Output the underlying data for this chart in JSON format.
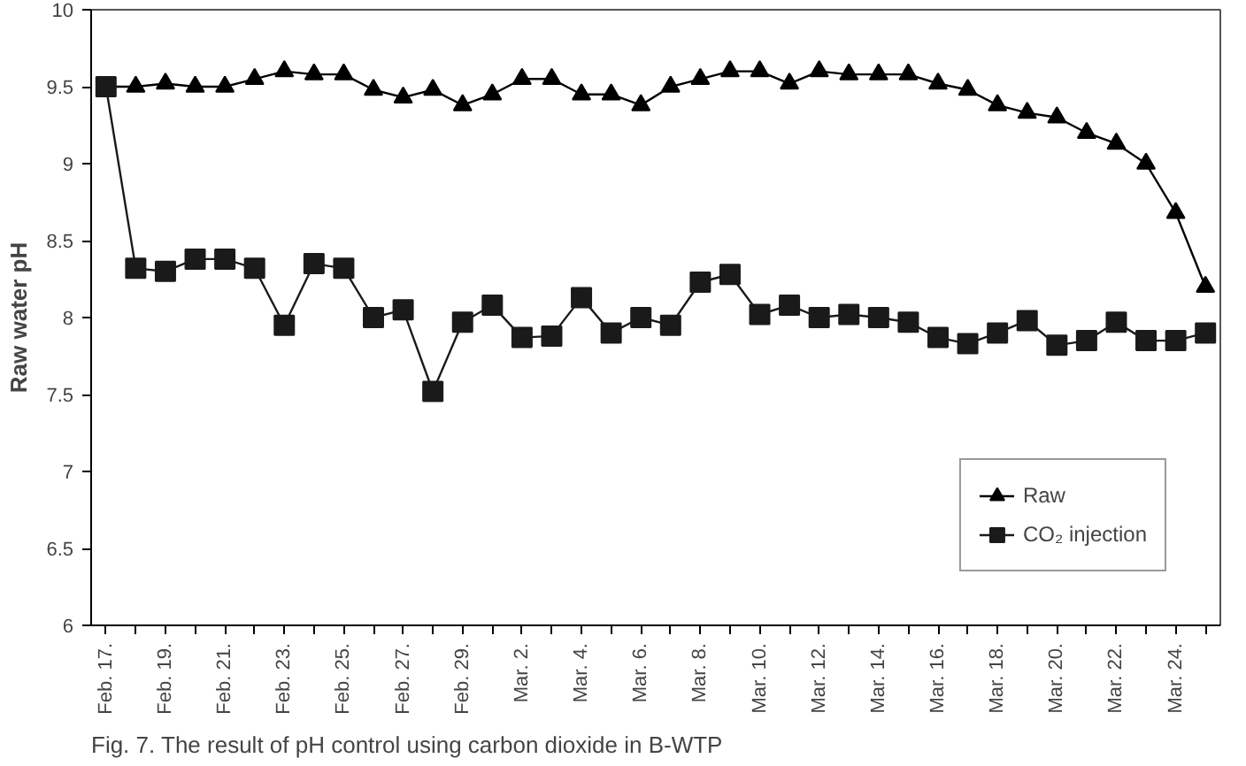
{
  "chart_data": {
    "type": "line",
    "ylabel": "Raw water pH",
    "categories": [
      "Feb. 17.",
      null,
      "Feb. 19.",
      null,
      "Feb. 21.",
      null,
      "Feb. 23.",
      null,
      "Feb. 25.",
      null,
      "Feb. 27.",
      null,
      "Feb. 29.",
      null,
      "Mar. 2.",
      null,
      "Mar. 4.",
      null,
      "Mar. 6.",
      null,
      "Mar. 8.",
      null,
      "Mar. 10.",
      null,
      "Mar. 12.",
      null,
      "Mar. 14.",
      null,
      "Mar. 16.",
      null,
      "Mar. 18.",
      null,
      "Mar. 20.",
      null,
      "Mar. 22.",
      null,
      "Mar. 24.",
      null
    ],
    "series": [
      {
        "name": "Raw",
        "color": "#000000",
        "marker": "triangle",
        "values": [
          9.5,
          9.5,
          9.52,
          9.5,
          9.5,
          9.55,
          9.6,
          9.58,
          9.58,
          9.48,
          9.43,
          9.48,
          9.38,
          9.45,
          9.55,
          9.55,
          9.45,
          9.45,
          9.38,
          9.5,
          9.55,
          9.6,
          9.6,
          9.52,
          9.6,
          9.58,
          9.58,
          9.58,
          9.52,
          9.48,
          9.38,
          9.33,
          9.3,
          9.2,
          9.13,
          9.0,
          8.68,
          8.2
        ]
      },
      {
        "name": "CO₂ injection",
        "color": "#1a1a1a",
        "marker": "square",
        "values": [
          9.5,
          8.32,
          8.3,
          8.38,
          8.38,
          8.32,
          7.95,
          8.35,
          8.32,
          8.0,
          8.05,
          7.52,
          7.97,
          8.08,
          7.87,
          7.88,
          8.13,
          7.9,
          8.0,
          7.95,
          8.23,
          8.28,
          8.02,
          8.08,
          8.0,
          8.02,
          8.0,
          7.97,
          7.87,
          7.83,
          7.9,
          7.98,
          7.82,
          7.85,
          7.97,
          7.85,
          7.85,
          7.9
        ]
      }
    ],
    "ylim": [
      6,
      10
    ],
    "yticks": [
      6,
      6.5,
      7,
      7.5,
      8,
      8.5,
      9,
      9.5,
      10
    ],
    "grid": false,
    "legend": "bottom right",
    "line_style": "solid",
    "annotations": [
      "Fig. 7. The result of pH control using carbon dioxide in B-WTP"
    ]
  }
}
